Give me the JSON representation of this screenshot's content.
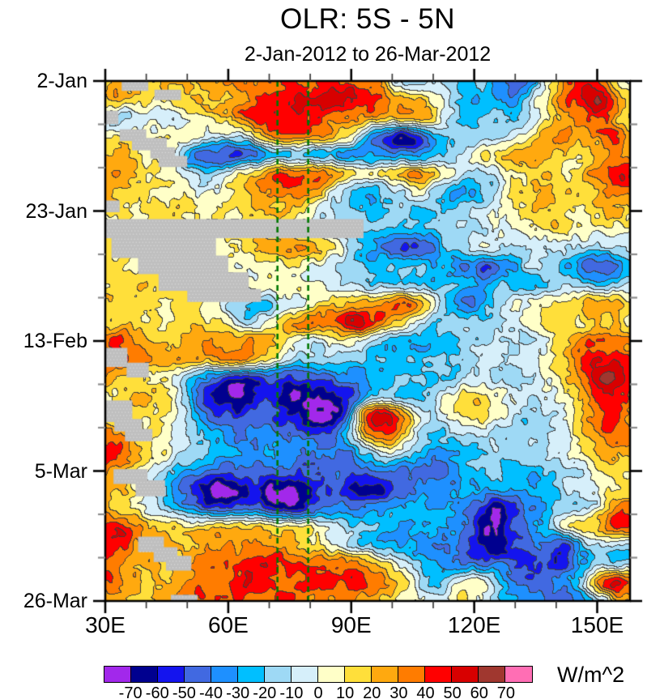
{
  "title": "OLR: 5S - 5N",
  "subtitle": "2-Jan-2012 to 26-Mar-2012",
  "colorbar": {
    "units": "W/m^2",
    "tick_labels": [
      "-70",
      "-60",
      "-50",
      "-40",
      "-30",
      "-20",
      "-10",
      "0",
      "10",
      "20",
      "30",
      "40",
      "50",
      "60",
      "70"
    ]
  },
  "axes": {
    "x": {
      "ticks": [
        {
          "lon": 30,
          "label": "30E"
        },
        {
          "lon": 60,
          "label": "60E"
        },
        {
          "lon": 90,
          "label": "90E"
        },
        {
          "lon": 120,
          "label": "120E"
        },
        {
          "lon": 150,
          "label": "150E"
        }
      ],
      "minor_lons": [
        40,
        50,
        70,
        80,
        100,
        110,
        130,
        140
      ],
      "range_lon": [
        30,
        158
      ]
    },
    "y": {
      "ticks": [
        {
          "day": 0,
          "label": "2-Jan"
        },
        {
          "day": 21,
          "label": "23-Jan"
        },
        {
          "day": 42,
          "label": "13-Feb"
        },
        {
          "day": 63,
          "label": "5-Mar"
        },
        {
          "day": 84,
          "label": "26-Mar"
        }
      ],
      "minor_days": [
        7,
        14,
        28,
        35,
        49,
        56,
        70,
        77
      ],
      "range_days": [
        0,
        84
      ]
    }
  },
  "chart_data": {
    "type": "heatmap",
    "title": "OLR: 5S - 5N",
    "subtitle": "2-Jan-2012 to 26-Mar-2012",
    "units": "W/m^2",
    "x_lon": [
      30,
      34,
      38,
      42,
      46,
      50,
      54,
      58,
      62,
      66,
      70,
      74,
      78,
      82,
      86,
      90,
      94,
      98,
      102,
      106,
      110,
      114,
      118,
      122,
      126,
      130,
      134,
      138,
      142,
      146,
      150,
      154,
      158
    ],
    "y_day": [
      0,
      3,
      6,
      9,
      12,
      15,
      18,
      21,
      24,
      27,
      30,
      33,
      36,
      39,
      42,
      45,
      48,
      51,
      54,
      57,
      60,
      63,
      66,
      69,
      72,
      75,
      78,
      81,
      84
    ],
    "values": [
      [
        22,
        25,
        20,
        22,
        18,
        20,
        25,
        28,
        30,
        32,
        38,
        42,
        40,
        38,
        45,
        40,
        35,
        22,
        -15,
        -18,
        -12,
        -15,
        -25,
        -18,
        -30,
        -45,
        -35,
        5,
        30,
        45,
        40,
        12,
        -8
      ],
      [
        20,
        22,
        18,
        15,
        12,
        15,
        22,
        20,
        25,
        35,
        45,
        48,
        50,
        52,
        55,
        52,
        48,
        35,
        25,
        20,
        8,
        -10,
        -22,
        -25,
        -30,
        -32,
        -12,
        15,
        35,
        50,
        58,
        40,
        15
      ],
      [
        -12,
        -15,
        -8,
        -5,
        -8,
        0,
        8,
        15,
        30,
        42,
        48,
        45,
        42,
        38,
        35,
        32,
        28,
        22,
        22,
        25,
        10,
        -15,
        -25,
        -20,
        -18,
        -22,
        -8,
        10,
        22,
        32,
        42,
        30,
        5
      ],
      [
        12,
        8,
        5,
        8,
        10,
        8,
        2,
        -5,
        -10,
        5,
        25,
        35,
        32,
        28,
        20,
        10,
        -20,
        -50,
        -62,
        -55,
        -30,
        -18,
        -15,
        -18,
        -15,
        -5,
        15,
        28,
        30,
        25,
        30,
        38,
        25
      ],
      [
        20,
        25,
        15,
        8,
        2,
        -30,
        -45,
        -48,
        -50,
        -42,
        -25,
        -18,
        -18,
        -22,
        -28,
        -30,
        -32,
        -30,
        -35,
        -35,
        -25,
        -15,
        -5,
        8,
        18,
        22,
        25,
        22,
        18,
        15,
        22,
        30,
        25
      ],
      [
        25,
        28,
        18,
        10,
        5,
        -8,
        -15,
        -10,
        5,
        20,
        32,
        38,
        36,
        35,
        30,
        15,
        5,
        8,
        15,
        30,
        20,
        5,
        -10,
        -15,
        -5,
        8,
        15,
        18,
        12,
        18,
        30,
        50,
        55
      ],
      [
        25,
        20,
        12,
        8,
        8,
        5,
        0,
        5,
        12,
        22,
        30,
        32,
        28,
        22,
        -5,
        -20,
        -25,
        -22,
        -10,
        0,
        -15,
        -28,
        -30,
        -20,
        -5,
        10,
        18,
        25,
        20,
        15,
        22,
        32,
        28
      ],
      [
        18,
        15,
        10,
        12,
        15,
        12,
        8,
        10,
        15,
        18,
        20,
        18,
        10,
        0,
        -12,
        -20,
        -25,
        -22,
        -18,
        -20,
        -22,
        -20,
        -15,
        -8,
        2,
        10,
        15,
        18,
        12,
        8,
        15,
        22,
        18
      ],
      [
        10,
        8,
        5,
        8,
        10,
        8,
        5,
        8,
        10,
        12,
        10,
        5,
        0,
        -5,
        -10,
        -15,
        -18,
        -22,
        -25,
        -25,
        -22,
        -18,
        -15,
        -10,
        -5,
        2,
        10,
        15,
        12,
        8,
        5,
        8,
        5
      ],
      [
        12,
        10,
        8,
        10,
        12,
        10,
        8,
        5,
        8,
        15,
        25,
        32,
        30,
        22,
        8,
        -10,
        -25,
        -38,
        -48,
        -48,
        -38,
        -22,
        -12,
        -5,
        -8,
        -12,
        -10,
        -5,
        -8,
        -10,
        -15,
        -12,
        -8
      ],
      [
        15,
        12,
        10,
        12,
        15,
        12,
        10,
        8,
        5,
        2,
        5,
        8,
        2,
        -5,
        -12,
        -18,
        -22,
        -20,
        -18,
        -22,
        -25,
        -30,
        -38,
        -45,
        -40,
        -28,
        -12,
        -15,
        -25,
        -38,
        -45,
        -40,
        -30
      ],
      [
        12,
        15,
        18,
        15,
        12,
        10,
        12,
        15,
        10,
        5,
        8,
        10,
        5,
        0,
        -5,
        -10,
        -15,
        -18,
        -22,
        -25,
        -22,
        -18,
        -25,
        -30,
        -20,
        -25,
        -25,
        -18,
        -12,
        -15,
        -20,
        -15,
        -10
      ],
      [
        18,
        15,
        12,
        10,
        12,
        15,
        10,
        0,
        -18,
        -25,
        -18,
        -8,
        2,
        10,
        18,
        22,
        26,
        30,
        40,
        28,
        5,
        -18,
        -40,
        -30,
        -15,
        -5,
        0,
        5,
        10,
        18,
        28,
        25,
        15
      ],
      [
        20,
        18,
        15,
        12,
        15,
        18,
        12,
        8,
        -5,
        -10,
        5,
        20,
        30,
        38,
        40,
        55,
        48,
        30,
        12,
        -5,
        -15,
        -18,
        -18,
        -20,
        -12,
        -5,
        5,
        12,
        15,
        12,
        18,
        15,
        12
      ],
      [
        35,
        40,
        30,
        25,
        20,
        22,
        25,
        22,
        25,
        28,
        22,
        10,
        0,
        -5,
        5,
        10,
        -5,
        -18,
        -25,
        -28,
        -25,
        -20,
        -15,
        -12,
        -10,
        -12,
        -8,
        5,
        15,
        28,
        38,
        32,
        28
      ],
      [
        45,
        40,
        32,
        28,
        25,
        28,
        25,
        28,
        30,
        25,
        8,
        -8,
        -15,
        -18,
        -15,
        -18,
        -20,
        -22,
        -25,
        -22,
        -20,
        -18,
        -15,
        -10,
        -8,
        -10,
        -5,
        8,
        22,
        38,
        45,
        50,
        42
      ],
      [
        25,
        20,
        15,
        12,
        5,
        -12,
        -32,
        -48,
        -55,
        -52,
        -48,
        -52,
        -50,
        -45,
        -40,
        -35,
        -28,
        -22,
        -18,
        -20,
        -22,
        -18,
        -12,
        -8,
        -10,
        -12,
        -8,
        0,
        15,
        32,
        52,
        58,
        45
      ],
      [
        5,
        15,
        20,
        18,
        12,
        -18,
        -48,
        -62,
        -72,
        -62,
        -55,
        -65,
        -70,
        -66,
        -60,
        -50,
        -25,
        -15,
        -18,
        -22,
        -12,
        2,
        12,
        10,
        2,
        -5,
        -8,
        -5,
        8,
        25,
        45,
        48,
        35
      ],
      [
        8,
        12,
        15,
        12,
        8,
        -10,
        -35,
        -50,
        -55,
        -52,
        -48,
        -58,
        -68,
        -75,
        -72,
        -30,
        40,
        50,
        35,
        5,
        -12,
        2,
        15,
        15,
        5,
        -8,
        -12,
        -10,
        0,
        20,
        38,
        42,
        30
      ],
      [
        35,
        30,
        20,
        10,
        2,
        -8,
        -22,
        -32,
        -38,
        -40,
        -38,
        -42,
        -45,
        -48,
        -42,
        -20,
        30,
        40,
        25,
        -5,
        -20,
        -15,
        -10,
        -12,
        -15,
        -18,
        -15,
        -10,
        -5,
        12,
        30,
        38,
        28
      ],
      [
        45,
        38,
        25,
        12,
        2,
        -8,
        -18,
        -26,
        -30,
        -34,
        -30,
        -30,
        -34,
        -38,
        -38,
        -35,
        -15,
        5,
        -5,
        -20,
        -32,
        -28,
        -22,
        -18,
        -16,
        -18,
        -15,
        -10,
        -2,
        8,
        20,
        26,
        22
      ],
      [
        28,
        22,
        8,
        -8,
        -18,
        -28,
        -38,
        -42,
        -45,
        -42,
        -42,
        -46,
        -48,
        -46,
        -42,
        -45,
        -42,
        -38,
        -40,
        -46,
        -45,
        -40,
        -28,
        -22,
        -18,
        -22,
        -25,
        -20,
        -12,
        -5,
        8,
        16,
        14
      ],
      [
        25,
        18,
        5,
        -12,
        -28,
        -48,
        -66,
        -72,
        -66,
        -56,
        -68,
        -70,
        -62,
        -52,
        -46,
        -56,
        -68,
        -60,
        -42,
        -36,
        -38,
        -35,
        -30,
        -25,
        -28,
        -32,
        -28,
        -22,
        -15,
        -10,
        -4,
        8,
        10
      ],
      [
        20,
        15,
        8,
        -5,
        -18,
        -30,
        -45,
        -50,
        -48,
        -45,
        -52,
        -62,
        -58,
        -46,
        -40,
        -38,
        -35,
        -32,
        -30,
        -28,
        -30,
        -30,
        -38,
        -55,
        -72,
        -52,
        -38,
        -28,
        -20,
        -15,
        0,
        28,
        35
      ],
      [
        42,
        48,
        30,
        18,
        14,
        12,
        14,
        16,
        18,
        18,
        15,
        12,
        8,
        2,
        -6,
        -14,
        -20,
        -26,
        -28,
        -26,
        -28,
        -32,
        -40,
        -68,
        -72,
        -48,
        -32,
        -22,
        5,
        12,
        22,
        42,
        40
      ],
      [
        50,
        44,
        32,
        26,
        22,
        20,
        24,
        28,
        30,
        30,
        28,
        25,
        18,
        8,
        0,
        -10,
        -20,
        -26,
        -30,
        -32,
        -35,
        -38,
        -48,
        -58,
        -70,
        -52,
        -46,
        -40,
        -48,
        -26,
        -12,
        -14,
        -16
      ],
      [
        42,
        32,
        25,
        22,
        20,
        26,
        32,
        36,
        40,
        42,
        45,
        42,
        40,
        42,
        38,
        35,
        26,
        12,
        -5,
        -18,
        -28,
        -34,
        -38,
        -42,
        -42,
        -46,
        -52,
        -50,
        -52,
        -32,
        -18,
        -20,
        -16
      ],
      [
        38,
        28,
        22,
        20,
        22,
        28,
        35,
        40,
        42,
        45,
        42,
        38,
        40,
        42,
        45,
        42,
        38,
        30,
        15,
        -5,
        -25,
        -8,
        8,
        0,
        -22,
        -40,
        -50,
        -45,
        -35,
        -20,
        32,
        48,
        40
      ],
      [
        25,
        20,
        18,
        20,
        25,
        30,
        35,
        40,
        38,
        35,
        38,
        40,
        38,
        35,
        30,
        28,
        25,
        18,
        8,
        -2,
        -8,
        2,
        8,
        0,
        -18,
        -30,
        -35,
        -40,
        -50,
        -35,
        -15,
        12,
        25
      ]
    ],
    "levels": [
      -70,
      -60,
      -50,
      -40,
      -30,
      -20,
      -10,
      0,
      10,
      20,
      30,
      40,
      50,
      60,
      70
    ],
    "palette": [
      "#A228EB",
      "#00008F",
      "#1414EE",
      "#4169E1",
      "#1E90FF",
      "#00BFFF",
      "#9ED9F5",
      "#D6EFFA",
      "#FFFFC8",
      "#FFDF3A",
      "#FFA90F",
      "#FF7C00",
      "#FF0000",
      "#D80000",
      "#A0372F",
      "#FF6EB4"
    ],
    "missing_color": "#BFBFBF",
    "missing_blocks": [
      [
        34,
        40.5,
        0,
        1.6
      ],
      [
        42,
        48.5,
        1.4,
        3.1
      ],
      [
        30,
        33.2,
        4.8,
        7.0
      ],
      [
        33.5,
        40,
        7.8,
        9.7
      ],
      [
        36.5,
        45,
        9.2,
        11.2
      ],
      [
        41,
        47,
        10.7,
        12.5
      ],
      [
        43,
        50,
        12.1,
        13.9
      ],
      [
        30,
        33.5,
        19.3,
        21.2
      ],
      [
        30,
        93,
        22.3,
        25.4
      ],
      [
        31.5,
        57,
        25.2,
        28.6
      ],
      [
        38,
        60,
        28.2,
        31.2
      ],
      [
        43,
        65,
        30.9,
        33.9
      ],
      [
        50,
        68,
        33.6,
        35.7
      ],
      [
        30,
        35.4,
        43.1,
        46.2
      ],
      [
        35.2,
        40.6,
        45.5,
        47.9
      ],
      [
        30,
        36.6,
        51.6,
        55.1
      ],
      [
        32.2,
        39,
        54.6,
        56.6
      ],
      [
        34.8,
        41.5,
        56.2,
        58.2
      ],
      [
        32,
        40.3,
        62.7,
        65.1
      ],
      [
        37.4,
        44.6,
        64.5,
        67.1
      ],
      [
        38,
        44.3,
        73.6,
        76.1
      ],
      [
        41.8,
        47.6,
        75.3,
        77.7
      ],
      [
        44.8,
        51,
        76.7,
        79.1
      ],
      [
        46,
        52.5,
        83,
        84
      ]
    ],
    "reference_lines_lon": [
      72,
      79.5
    ],
    "reference_line_color": "#007700"
  }
}
